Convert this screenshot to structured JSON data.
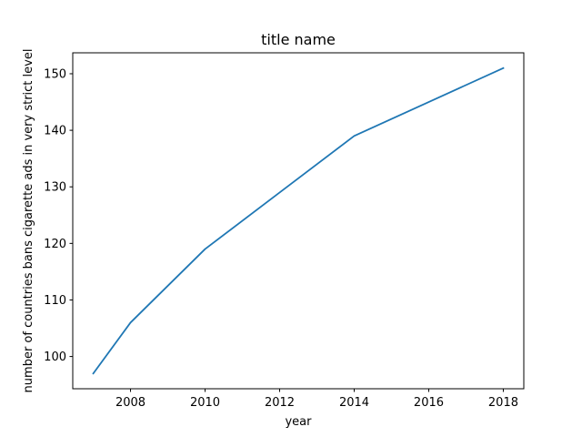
{
  "chart_data": {
    "type": "line",
    "title": "title name",
    "xlabel": "year",
    "ylabel": "number of countries bans cigarette ads in very strict level",
    "x": [
      2007,
      2008,
      2010,
      2012,
      2014,
      2016,
      2018
    ],
    "series": [
      {
        "values": [
          97,
          106,
          119,
          129,
          139,
          145,
          151
        ],
        "color": "#1f77b4"
      }
    ],
    "xlim": [
      2006.45,
      2018.55
    ],
    "ylim": [
      94.3,
      153.7
    ],
    "xticks": [
      2008,
      2010,
      2012,
      2014,
      2016,
      2018
    ],
    "yticks": [
      100,
      110,
      120,
      130,
      140,
      150
    ],
    "grid": false,
    "legend": false
  }
}
